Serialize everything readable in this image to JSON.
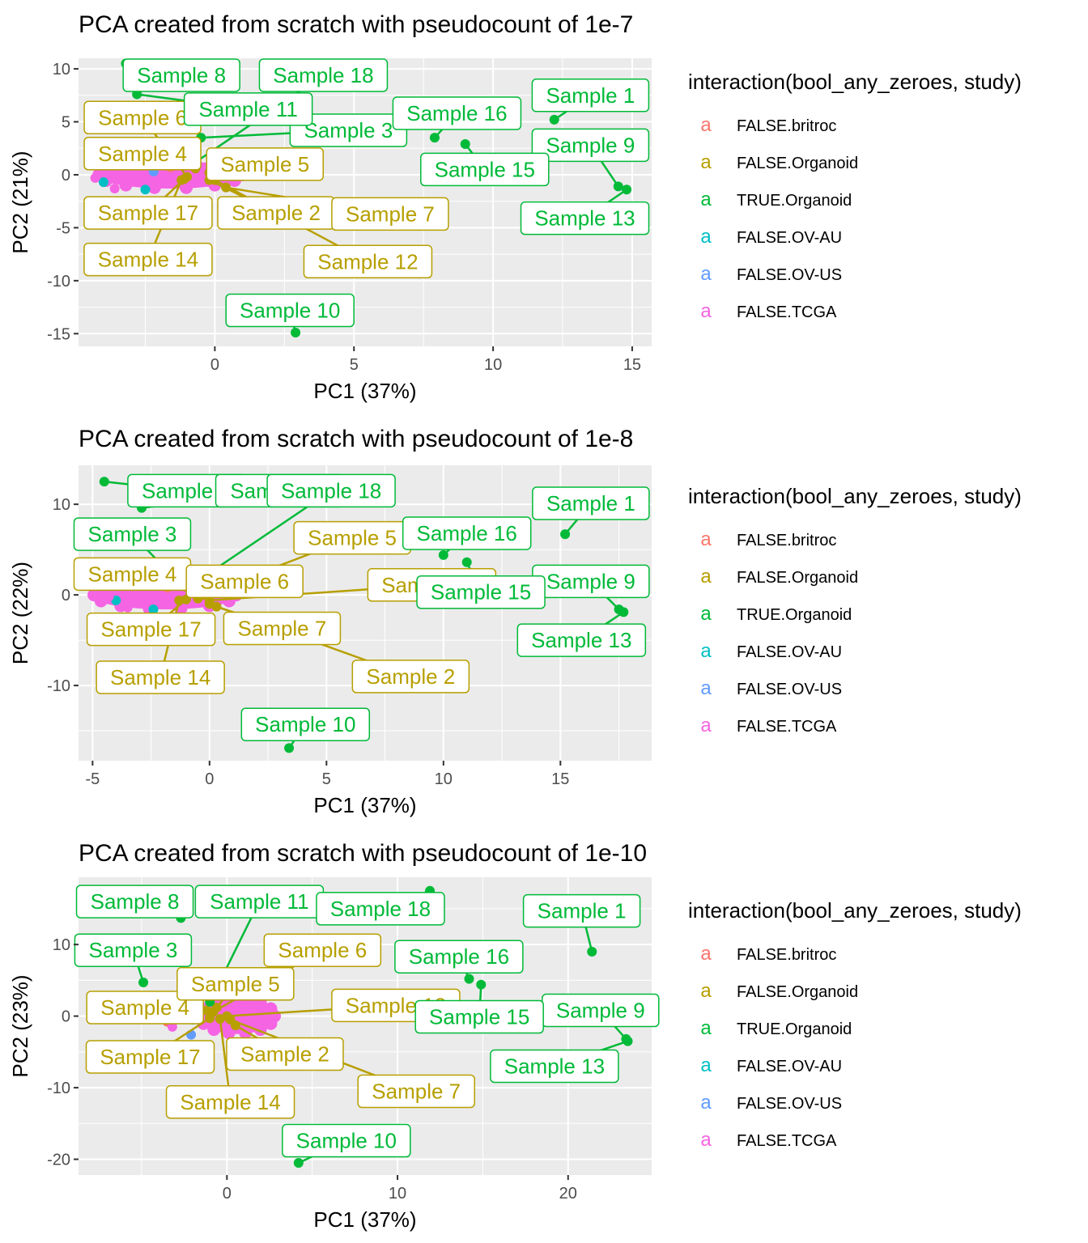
{
  "colors": {
    "FALSE.britroc": "#F8766D",
    "FALSE.Organoid": "#B79F00",
    "TRUE.Organoid": "#00BA38",
    "FALSE.OV-AU": "#00BFC4",
    "FALSE.OV-US": "#619CFF",
    "FALSE.TCGA": "#F564E3",
    "panel_bg": "#EBEBEB",
    "grid": "#FFFFFF"
  },
  "legend": {
    "title": "interaction(bool_any_zeroes, study)",
    "key_glyph": "a",
    "entries": [
      "FALSE.britroc",
      "FALSE.Organoid",
      "TRUE.Organoid",
      "FALSE.OV-AU",
      "FALSE.OV-US",
      "FALSE.TCGA"
    ]
  },
  "chart_data": [
    {
      "type": "scatter",
      "title": "PCA created from scratch with pseudocount of 1e-7",
      "xlabel": "PC1 (37%)",
      "ylabel": "PC2 (21%)",
      "xlim": [
        -4.9,
        15.7
      ],
      "ylim": [
        -16.2,
        11.0
      ],
      "xticks": [
        0,
        5,
        10,
        15
      ],
      "yticks": [
        -15,
        -10,
        -5,
        0,
        5,
        10
      ],
      "grid": true,
      "legend_position": "right",
      "cluster": {
        "group": "FALSE.TCGA",
        "cx": -1.6,
        "cy": 0.0,
        "rx": 2.7,
        "ry": 1.3
      },
      "points": [
        {
          "group": "FALSE.OV-AU",
          "x": -4.0,
          "y": -0.7
        },
        {
          "group": "FALSE.TCGA",
          "x": -4.3,
          "y": -0.3
        },
        {
          "group": "FALSE.TCGA",
          "x": -3.6,
          "y": -1.3
        },
        {
          "group": "FALSE.OV-AU",
          "x": -2.5,
          "y": -1.4
        },
        {
          "group": "FALSE.britroc",
          "x": -1.6,
          "y": 0.7
        },
        {
          "group": "FALSE.OV-US",
          "x": -2.2,
          "y": 0.3
        }
      ],
      "samples": [
        {
          "label": "Sample 1",
          "group": "TRUE.Organoid",
          "x": 12.2,
          "y": 5.2,
          "lx": 13.5,
          "ly": 7.5
        },
        {
          "label": "Sample 2",
          "group": "FALSE.Organoid",
          "x": -0.2,
          "y": -0.5,
          "lx": 2.2,
          "ly": -3.6
        },
        {
          "label": "Sample 3",
          "group": "TRUE.Organoid",
          "x": -0.5,
          "y": 3.5,
          "lx": 4.8,
          "ly": 4.2
        },
        {
          "label": "Sample 4",
          "group": "FALSE.Organoid",
          "x": -0.7,
          "y": 0.6,
          "lx": -2.6,
          "ly": 2.0
        },
        {
          "label": "Sample 5",
          "group": "FALSE.Organoid",
          "x": -0.2,
          "y": 0.2,
          "lx": 1.8,
          "ly": 1.0
        },
        {
          "label": "Sample 6",
          "group": "FALSE.Organoid",
          "x": -1.0,
          "y": -0.2,
          "lx": -2.6,
          "ly": 5.4
        },
        {
          "label": "Sample 7",
          "group": "FALSE.Organoid",
          "x": 0.4,
          "y": -1.2,
          "lx": 6.3,
          "ly": -3.7
        },
        {
          "label": "Sample 8",
          "group": "TRUE.Organoid",
          "x": -3.2,
          "y": 10.5,
          "lx": -1.2,
          "ly": 9.4
        },
        {
          "label": "Sample 9",
          "group": "TRUE.Organoid",
          "x": 14.5,
          "y": -1.1,
          "lx": 13.5,
          "ly": 2.8
        },
        {
          "label": "Sample 10",
          "group": "TRUE.Organoid",
          "x": 2.9,
          "y": -14.9,
          "lx": 2.7,
          "ly": -12.8
        },
        {
          "label": "Sample 11",
          "group": "TRUE.Organoid",
          "x": -2.8,
          "y": 7.6,
          "lx": 1.2,
          "ly": 6.2
        },
        {
          "label": "Sample 12",
          "group": "FALSE.Organoid",
          "x": 0.0,
          "y": -0.5,
          "lx": 5.5,
          "ly": -8.2
        },
        {
          "label": "Sample 13",
          "group": "TRUE.Organoid",
          "x": 14.8,
          "y": -1.4,
          "lx": 13.3,
          "ly": -4.1
        },
        {
          "label": "Sample 14",
          "group": "FALSE.Organoid",
          "x": -1.2,
          "y": -0.5,
          "lx": -2.4,
          "ly": -8.0
        },
        {
          "label": "Sample 15",
          "group": "TRUE.Organoid",
          "x": 9.0,
          "y": 2.9,
          "lx": 9.7,
          "ly": 0.5
        },
        {
          "label": "Sample 16",
          "group": "TRUE.Organoid",
          "x": 7.9,
          "y": 3.5,
          "lx": 8.7,
          "ly": 5.8
        },
        {
          "label": "Sample 17",
          "group": "FALSE.Organoid",
          "x": -1.1,
          "y": -0.4,
          "lx": -2.4,
          "ly": -3.6
        },
        {
          "label": "Sample 18",
          "group": "TRUE.Organoid",
          "x": -0.8,
          "y": 1.0,
          "lx": 3.9,
          "ly": 9.4
        }
      ]
    },
    {
      "type": "scatter",
      "title": "PCA created from scratch with pseudocount of 1e-8",
      "xlabel": "PC1 (37%)",
      "ylabel": "PC2 (22%)",
      "xlim": [
        -5.6,
        18.9
      ],
      "ylim": [
        -18.3,
        14.3
      ],
      "xticks": [
        -5,
        0,
        5,
        10,
        15
      ],
      "yticks": [
        -10,
        0,
        10
      ],
      "grid": true,
      "legend_position": "right",
      "cluster": {
        "group": "FALSE.TCGA",
        "cx": -1.9,
        "cy": 0.0,
        "rx": 3.2,
        "ry": 1.6
      },
      "points": [
        {
          "group": "FALSE.OV-AU",
          "x": -4.0,
          "y": -0.6
        },
        {
          "group": "FALSE.TCGA",
          "x": -4.3,
          "y": -0.2
        },
        {
          "group": "FALSE.TCGA",
          "x": -3.5,
          "y": -1.4
        },
        {
          "group": "FALSE.OV-AU",
          "x": -2.4,
          "y": -1.6
        },
        {
          "group": "FALSE.britroc",
          "x": -1.8,
          "y": 0.8
        }
      ],
      "samples": [
        {
          "label": "Sample 1",
          "group": "TRUE.Organoid",
          "x": 15.2,
          "y": 6.7,
          "lx": 16.3,
          "ly": 10.1
        },
        {
          "label": "Sample 2",
          "group": "FALSE.Organoid",
          "x": 0.0,
          "y": -1.0,
          "lx": 8.6,
          "ly": -9.0
        },
        {
          "label": "Sample 3",
          "group": "TRUE.Organoid",
          "x": -1.2,
          "y": 1.0,
          "lx": -3.3,
          "ly": 6.7
        },
        {
          "label": "Sample 4",
          "group": "FALSE.Organoid",
          "x": -0.8,
          "y": 0.3,
          "lx": -3.3,
          "ly": 2.3
        },
        {
          "label": "Sample 5",
          "group": "FALSE.Organoid",
          "x": -0.3,
          "y": 0.0,
          "lx": 6.1,
          "ly": 6.3
        },
        {
          "label": "Sample 6",
          "group": "FALSE.Organoid",
          "x": -0.5,
          "y": -0.4,
          "lx": 1.5,
          "ly": 1.5
        },
        {
          "label": "Sample 7",
          "group": "FALSE.Organoid",
          "x": 0.3,
          "y": -1.3,
          "lx": 3.1,
          "ly": -3.7
        },
        {
          "label": "Sample 8",
          "group": "TRUE.Organoid",
          "x": -4.5,
          "y": 12.5,
          "lx": -1.0,
          "ly": 11.5
        },
        {
          "label": "Sample 9",
          "group": "TRUE.Organoid",
          "x": 17.5,
          "y": -1.6,
          "lx": 16.3,
          "ly": 1.5
        },
        {
          "label": "Sample 10",
          "group": "TRUE.Organoid",
          "x": 3.4,
          "y": -16.9,
          "lx": 4.1,
          "ly": -14.3
        },
        {
          "label": "Sample 11",
          "group": "TRUE.Organoid",
          "x": -2.9,
          "y": 9.6,
          "lx": 3.0,
          "ly": 11.5
        },
        {
          "label": "Sample 12",
          "group": "FALSE.Organoid",
          "x": 0.0,
          "y": -0.6,
          "lx": 9.5,
          "ly": 1.1
        },
        {
          "label": "Sample 13",
          "group": "TRUE.Organoid",
          "x": 17.7,
          "y": -1.9,
          "lx": 15.9,
          "ly": -5.0
        },
        {
          "label": "Sample 14",
          "group": "FALSE.Organoid",
          "x": -1.3,
          "y": -0.6,
          "lx": -2.1,
          "ly": -9.1
        },
        {
          "label": "Sample 15",
          "group": "TRUE.Organoid",
          "x": 11.0,
          "y": 3.6,
          "lx": 11.6,
          "ly": 0.3
        },
        {
          "label": "Sample 16",
          "group": "TRUE.Organoid",
          "x": 10.0,
          "y": 4.4,
          "lx": 11.0,
          "ly": 6.8
        },
        {
          "label": "Sample 17",
          "group": "FALSE.Organoid",
          "x": -1.0,
          "y": -0.5,
          "lx": -2.5,
          "ly": -3.8
        },
        {
          "label": "Sample 18",
          "group": "TRUE.Organoid",
          "x": -0.7,
          "y": 1.2,
          "lx": 5.2,
          "ly": 11.5
        }
      ]
    },
    {
      "type": "scatter",
      "title": "PCA created from scratch with pseudocount of 1e-10",
      "xlabel": "PC1 (37%)",
      "ylabel": "PC2 (23%)",
      "xlim": [
        -8.7,
        24.9
      ],
      "ylim": [
        -22.2,
        19.4
      ],
      "xticks": [
        0,
        10,
        20
      ],
      "yticks": [
        -20,
        -10,
        0,
        10
      ],
      "grid": true,
      "legend_position": "right",
      "cluster": {
        "group": "FALSE.TCGA",
        "cx": 0.6,
        "cy": 0.0,
        "rx": 2.3,
        "ry": 2.5
      },
      "points": [
        {
          "group": "FALSE.OV-AU",
          "x": -2.0,
          "y": -0.5
        },
        {
          "group": "FALSE.britroc",
          "x": -3.5,
          "y": -0.8
        },
        {
          "group": "FALSE.OV-US",
          "x": -2.1,
          "y": -2.6
        },
        {
          "group": "FALSE.TCGA",
          "x": -3.2,
          "y": -1.5
        }
      ],
      "samples": [
        {
          "label": "Sample 1",
          "group": "TRUE.Organoid",
          "x": 21.4,
          "y": 9.0,
          "lx": 20.8,
          "ly": 14.7
        },
        {
          "label": "Sample 2",
          "group": "FALSE.Organoid",
          "x": 0.5,
          "y": -1.3,
          "lx": 3.4,
          "ly": -5.3
        },
        {
          "label": "Sample 3",
          "group": "TRUE.Organoid",
          "x": -4.9,
          "y": 4.7,
          "lx": -5.5,
          "ly": 9.2
        },
        {
          "label": "Sample 4",
          "group": "FALSE.Organoid",
          "x": -1.2,
          "y": 0.8,
          "lx": -4.8,
          "ly": 1.2
        },
        {
          "label": "Sample 5",
          "group": "FALSE.Organoid",
          "x": -0.6,
          "y": 1.2,
          "lx": 0.5,
          "ly": 4.5
        },
        {
          "label": "Sample 6",
          "group": "FALSE.Organoid",
          "x": -0.8,
          "y": 0.6,
          "lx": 5.6,
          "ly": 9.2
        },
        {
          "label": "Sample 7",
          "group": "FALSE.Organoid",
          "x": 0.2,
          "y": -0.5,
          "lx": 11.1,
          "ly": -10.5
        },
        {
          "label": "Sample 8",
          "group": "TRUE.Organoid",
          "x": -2.7,
          "y": 13.7,
          "lx": -5.4,
          "ly": 16.0
        },
        {
          "label": "Sample 9",
          "group": "TRUE.Organoid",
          "x": 23.4,
          "y": -3.2,
          "lx": 21.9,
          "ly": 0.8
        },
        {
          "label": "Sample 10",
          "group": "TRUE.Organoid",
          "x": 4.2,
          "y": -20.5,
          "lx": 7.0,
          "ly": -17.4
        },
        {
          "label": "Sample 11",
          "group": "TRUE.Organoid",
          "x": -1.0,
          "y": 2.0,
          "lx": 1.9,
          "ly": 16.0
        },
        {
          "label": "Sample 12",
          "group": "FALSE.Organoid",
          "x": 0.0,
          "y": 0.0,
          "lx": 9.9,
          "ly": 1.5
        },
        {
          "label": "Sample 13",
          "group": "TRUE.Organoid",
          "x": 23.5,
          "y": -3.5,
          "lx": 19.2,
          "ly": -7.0
        },
        {
          "label": "Sample 14",
          "group": "FALSE.Organoid",
          "x": -0.4,
          "y": -0.4,
          "lx": 0.2,
          "ly": -12.0
        },
        {
          "label": "Sample 15",
          "group": "TRUE.Organoid",
          "x": 14.9,
          "y": 4.4,
          "lx": 14.8,
          "ly": -0.1
        },
        {
          "label": "Sample 16",
          "group": "TRUE.Organoid",
          "x": 14.2,
          "y": 5.2,
          "lx": 13.6,
          "ly": 8.3
        },
        {
          "label": "Sample 17",
          "group": "FALSE.Organoid",
          "x": -1.0,
          "y": -0.3,
          "lx": -4.5,
          "ly": -5.7
        },
        {
          "label": "Sample 18",
          "group": "TRUE.Organoid",
          "x": 11.9,
          "y": 17.5,
          "lx": 9.0,
          "ly": 15.0
        }
      ]
    }
  ]
}
